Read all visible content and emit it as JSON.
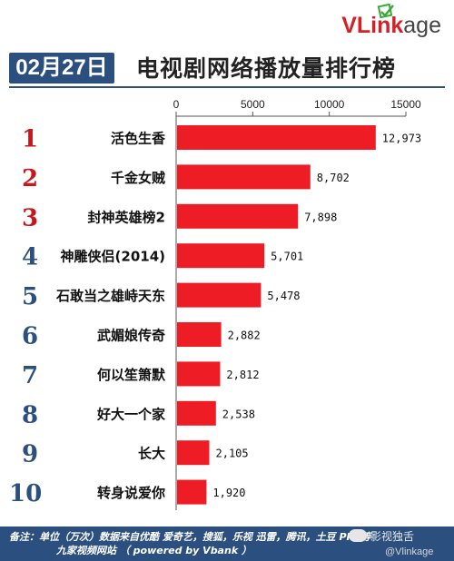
{
  "brand": {
    "logo_text_v": "VLink",
    "logo_text_rest": "age"
  },
  "header": {
    "date": "02月27日",
    "title": "电视剧网络播放量排行榜"
  },
  "chart_data": {
    "type": "bar",
    "orientation": "horizontal",
    "title": "电视剧网络播放量排行榜",
    "categories": [
      "活色生香",
      "千金女贼",
      "封神英雄榜2",
      "神雕侠侣(2014)",
      "石敢当之雄峙天东",
      "武媚娘传奇",
      "何以笙箫默",
      "好大一个家",
      "长大",
      "转身说爱你"
    ],
    "ranks": [
      "1",
      "2",
      "3",
      "4",
      "5",
      "6",
      "7",
      "8",
      "9",
      "10"
    ],
    "values": [
      12973,
      8702,
      7898,
      5701,
      5478,
      2882,
      2812,
      2538,
      2105,
      1920
    ],
    "value_labels": [
      "12,973",
      "8,702",
      "7,898",
      "5,701",
      "5,478",
      "2,882",
      "2,812",
      "2,538",
      "2,105",
      "1,920"
    ],
    "xticks": [
      "0",
      "5000",
      "10000",
      "15000"
    ],
    "xlim": [
      0,
      15000
    ],
    "axis_position": "top",
    "grid": false,
    "bar_color": "#ee1c25",
    "rank_colors": [
      "#c8161d",
      "#c8161d",
      "#c8161d",
      "#2b4f7f",
      "#2b4f7f",
      "#2b4f7f",
      "#2b4f7f",
      "#2b4f7f",
      "#2b4f7f",
      "#2b4f7f"
    ]
  },
  "footer": {
    "note": "备注：单位（万次）数据来自优酷 爱奇艺，搜狐，乐视  迅雷，腾讯，土豆 PPS等",
    "sites": "九家视频网站    （ powered by Vbank ）"
  },
  "watermark": {
    "line1": "影视独舌",
    "line2": "@Vlinkage"
  },
  "colors": {
    "navy": "#2b4f7f",
    "red": "#ee1c25",
    "dark_red": "#c8161d"
  }
}
